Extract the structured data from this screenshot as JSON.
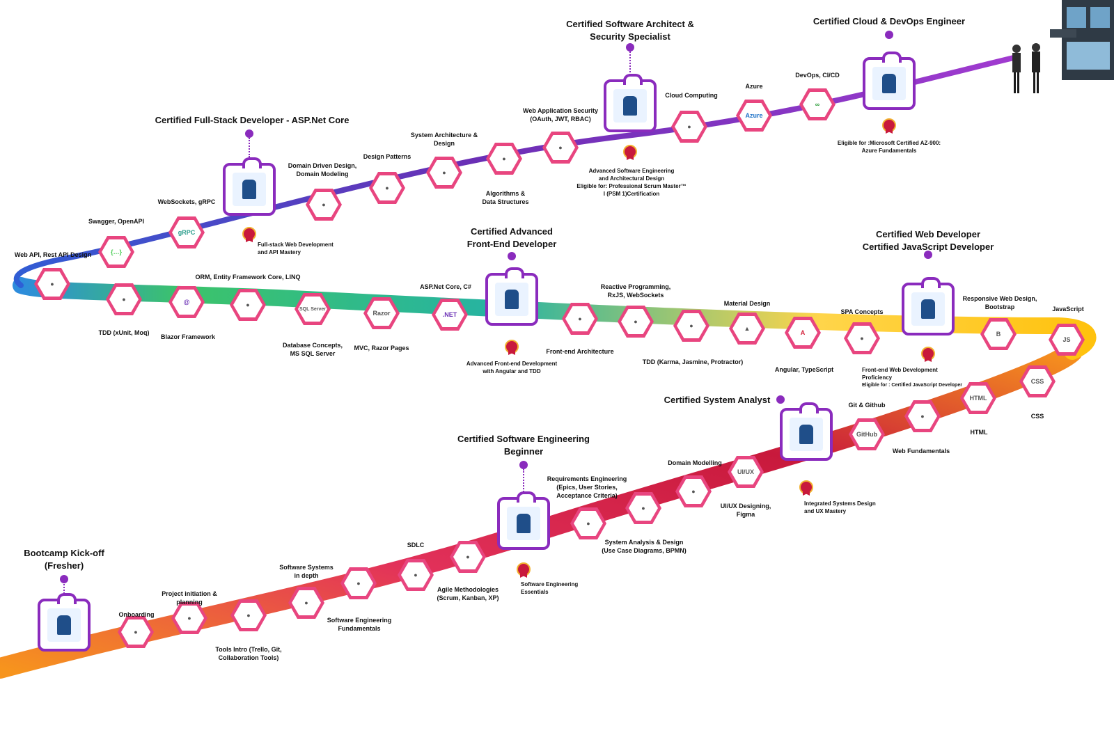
{
  "titles": {
    "kickoff": "Bootcamp Kick-off\n(Fresher)",
    "se_beginner": "Certified Software Engineering\nBeginner",
    "system_analyst": "Certified System Analyst",
    "web_dev": "Certified Web Developer\nCertified JavaScript Developer",
    "frontend": "Certified Advanced\nFront-End Developer",
    "fullstack": "Certified Full-Stack Developer - ASP.Net Core",
    "architect": "Certified Software Architect &\nSecurity Specialist",
    "cloud": "Certified Cloud & DevOps Engineer"
  },
  "notes": {
    "se_essentials": "Software Engineering\nEssentials",
    "integrated": "Integrated Systems Design\nand UX Mastery",
    "frontend_prof": "Front-end Web Development\nProficiency",
    "frontend_elig": "Eligible for : Certified JavaScript Developer",
    "adv_frontend": "Advanced Front-end Development\nwith Angular and TDD",
    "fullstack_mastery": "Full-stack Web Development\nand API Mastery",
    "adv_se": "Advanced Software Engineering\nand Architectural Design\nEligible for: Professional Scrum Master™\nI (PSM 1)Certification",
    "az900": "Eligible for :Microsoft Certified AZ-900:\nAzure Fundamentals"
  },
  "topics": {
    "onboarding": "Onboarding",
    "project_init": "Project initiation &\nplanning",
    "tools_intro": "Tools Intro (Trello, Git,\nCollaboration Tools)",
    "sys_depth": "Software Systems\nin depth",
    "se_fund": "Software Engineering\nFundamentals",
    "sdlc": "SDLC",
    "agile": "Agile Methodologies\n(Scrum, Kanban, XP)",
    "req_eng": "Requirements Engineering\n(Epics, User Stories,\nAcceptance Criteria)",
    "sys_analysis": "System Analysis & Design\n(Use Case Diagrams, BPMN)",
    "domain_modelling": "Domain Modelling",
    "uiux": "UI/UX Designing,\nFigma",
    "git": "Git & Github",
    "web_fund": "Web Fundamentals",
    "html": "HTML",
    "css": "CSS",
    "javascript": "JavaScript",
    "responsive": "Responsive Web Design,\nBootstrap",
    "spa": "SPA Concepts",
    "angular": "Angular, TypeScript",
    "material": "Material Design",
    "tdd_karma": "TDD (Karma, Jasmine, Protractor)",
    "reactive": "Reactive Programming,\nRxJS, WebSockets",
    "fe_arch": "Front-end Architecture",
    "aspnet": "ASP.Net Core, C#",
    "mvc": "MVC, Razor Pages",
    "db": "Database Concepts,\nMS SQL Server",
    "orm": "ORM, Entity Framework Core, LINQ",
    "blazor": "Blazor Framework",
    "tdd_xunit": "TDD (xUnit, Moq)",
    "webapi": "Web API, Rest API Design",
    "swagger": "Swagger, OpenAPI",
    "websockets": "WebSockets, gRPC",
    "ddd": "Domain Driven Design,\nDomain Modeling",
    "patterns": "Design Patterns",
    "sys_arch": "System Architecture &\nDesign",
    "algorithms": "Algorithms &\nData Structures",
    "security": "Web Application Security\n(OAuth, JWT, RBAC)",
    "cloud_computing": "Cloud Computing",
    "azure": "Azure",
    "devops": "DevOps, CI/CD"
  },
  "icons": {
    "uiux": "UI/UX",
    "github": "GitHub",
    "html": "HTML",
    "css": "CSS",
    "js": "JS",
    "bootstrap": "B",
    "angular": "A",
    "azure": "Azure",
    "grpc": "gRPC",
    "sqlserver": "SQL Server",
    "razor": "Razor",
    "net": ".NET"
  },
  "colors": {
    "badge": "#8a2bbd",
    "hex": "#e8457f",
    "road_orange": "#f7941d",
    "road_red": "#c8193c",
    "road_yellow": "#ffc20e",
    "road_teal": "#24b6a0",
    "road_purple": "#6a2fb5"
  }
}
